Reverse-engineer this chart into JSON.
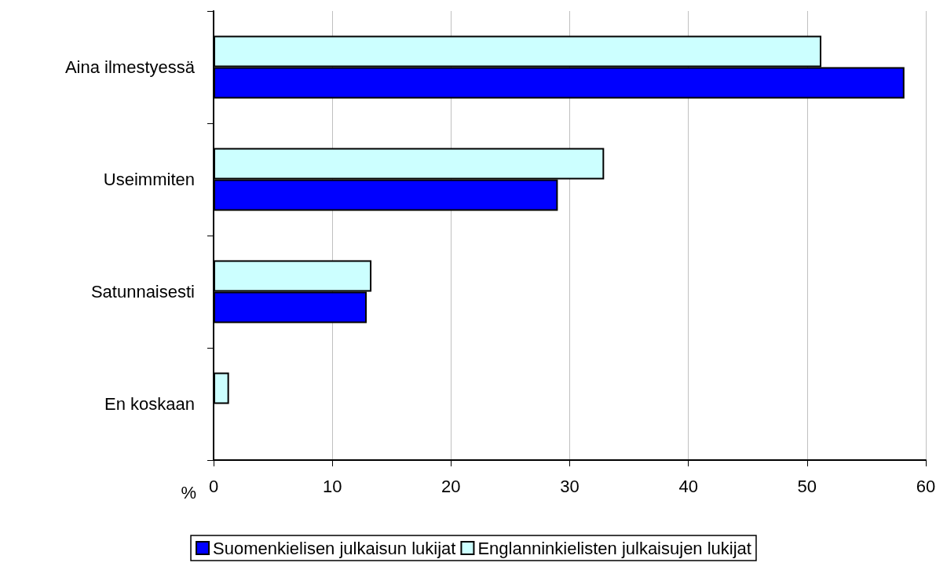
{
  "chart_data": {
    "type": "bar",
    "orientation": "horizontal",
    "xlabel": "%",
    "categories": [
      "Aina ilmestyessä",
      "Useimmiten",
      "Satunnaisesti",
      "En koskaan"
    ],
    "series": [
      {
        "name": "Englanninkielisten julkaisujen lukijat",
        "color": "#ccffff",
        "values": [
          51.2,
          32.9,
          13.3,
          1.3
        ]
      },
      {
        "name": "Suomenkielisen julkaisun lukijat",
        "color": "#0000ff",
        "values": [
          58.2,
          29.0,
          12.9,
          0
        ]
      }
    ],
    "xlim": [
      0,
      60
    ],
    "xticks": [
      0,
      10,
      20,
      30,
      40,
      50,
      60
    ],
    "grid": "x",
    "legend": "bottom"
  }
}
